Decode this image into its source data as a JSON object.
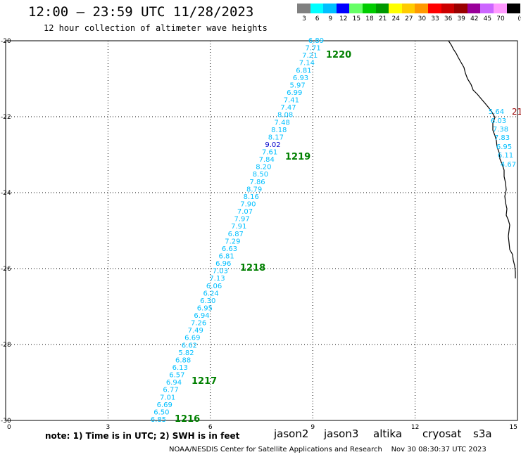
{
  "header": {
    "title": "12:00 — 23:59 UTC 11/28/2023",
    "subtitle": "12 hour collection of altimeter wave heights"
  },
  "legend": {
    "unit": "(ft)",
    "bins": [
      {
        "label": "3",
        "color": "#808080"
      },
      {
        "label": "6",
        "color": "#00ffff"
      },
      {
        "label": "9",
        "color": "#00bfff"
      },
      {
        "label": "12",
        "color": "#0000ff"
      },
      {
        "label": "15",
        "color": "#66ff66"
      },
      {
        "label": "18",
        "color": "#00cc00"
      },
      {
        "label": "21",
        "color": "#009900"
      },
      {
        "label": "24",
        "color": "#ffff00"
      },
      {
        "label": "27",
        "color": "#ffcc00"
      },
      {
        "label": "30",
        "color": "#ff9900"
      },
      {
        "label": "33",
        "color": "#ff0000"
      },
      {
        "label": "36",
        "color": "#cc0000"
      },
      {
        "label": "39",
        "color": "#990000"
      },
      {
        "label": "42",
        "color": "#990099"
      },
      {
        "label": "45",
        "color": "#cc66ff"
      },
      {
        "label": "70",
        "color": "#ff99ff"
      },
      {
        "label": "",
        "color": "#000000"
      }
    ]
  },
  "axes": {
    "x_ticks": [
      "0",
      "3",
      "6",
      "9",
      "12",
      "15"
    ],
    "y_ticks": [
      "-20",
      "-22",
      "-24",
      "-26",
      "-28",
      "-30"
    ]
  },
  "track_main": {
    "values": [
      "6.89",
      "7.71",
      "7.21",
      "7.14",
      "6.81",
      "6.93",
      "5.97",
      "6.99",
      "7.41",
      "7.47",
      "8.08",
      "7.48",
      "8.18",
      "8.17",
      "9.02",
      "7.61",
      "7.84",
      "8.20",
      "8.50",
      "7.86",
      "8.79",
      "8.16",
      "7.90",
      "7.07",
      "7.97",
      "7.91",
      "6.87",
      "7.29",
      "6.63",
      "6.81",
      "6.96",
      "7.03",
      "7.13",
      "6.06",
      "6.24",
      "6.30",
      "6.95",
      "6.94",
      "7.26",
      "7.49",
      "6.69",
      "6.62",
      "5.82",
      "6.88",
      "6.13",
      "6.57",
      "6.94",
      "6.77",
      "7.01",
      "6.69",
      "6.50",
      "6.85"
    ],
    "highlight_value": "9.02",
    "normal_color": "#00bfff",
    "highlight_color": "#0000cc"
  },
  "track_right": {
    "values": [
      "5.64",
      "6.03",
      "7.38",
      "7.83",
      "6.95",
      "6.11",
      "4.67"
    ],
    "cut_label": "21"
  },
  "time_labels": [
    "1220",
    "1219",
    "1218",
    "1217",
    "1216"
  ],
  "time_label_color": "#008000",
  "footer": {
    "note": "note: 1) Time is in UTC; 2) SWH is in feet",
    "satellites": [
      {
        "name": "jason2",
        "color": "#0000cc"
      },
      {
        "name": "jason3",
        "color": "#009900"
      },
      {
        "name": "altika",
        "color": "#ff9900"
      },
      {
        "name": "cryosat",
        "color": "#ff0000"
      },
      {
        "name": "s3a",
        "color": "#990000"
      }
    ],
    "credit": "NOAA/NESDIS Center for Satellite Applications and Research",
    "timestamp": "Nov 30 08:30:37 UTC 2023"
  }
}
